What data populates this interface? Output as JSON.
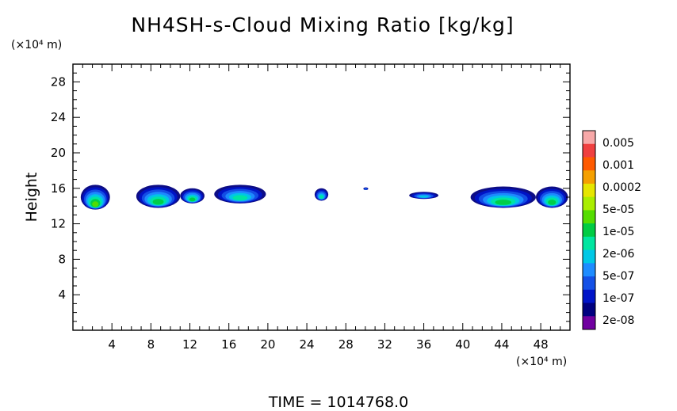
{
  "chart_data": {
    "type": "heatmap",
    "title": "NH4SH-s-Cloud Mixing Ratio [kg/kg]",
    "ylabel": "Height",
    "y_unit": "(×10⁴ m)",
    "x_unit": "(×10⁴ m)",
    "xlim": [
      0,
      51
    ],
    "ylim": [
      0,
      30
    ],
    "x_ticks": [
      "4",
      "8",
      "12",
      "16",
      "20",
      "24",
      "28",
      "32",
      "36",
      "40",
      "44",
      "48"
    ],
    "y_ticks": [
      "4",
      "8",
      "12",
      "16",
      "20",
      "24",
      "28"
    ],
    "grid": false,
    "colorbar": {
      "labels": [
        "0.005",
        "0.001",
        "0.0002",
        "5e-05",
        "1e-05",
        "2e-06",
        "5e-07",
        "1e-07",
        "2e-08"
      ],
      "colors": [
        "#f7a8a8",
        "#f04040",
        "#ff5a00",
        "#f5a000",
        "#e6e600",
        "#aaee00",
        "#55dd00",
        "#00cc44",
        "#00e6a0",
        "#00c8e6",
        "#1e8cff",
        "#1450e6",
        "#0014c8",
        "#000080",
        "#7000a0"
      ]
    },
    "cloud_patches": [
      {
        "x": [
          0.8,
          3.8
        ],
        "y": [
          13.6,
          16.4
        ],
        "max_level": "5e-05"
      },
      {
        "x": [
          6.5,
          11.0
        ],
        "y": [
          13.8,
          16.4
        ],
        "max_level": "1e-05"
      },
      {
        "x": [
          11.0,
          13.5
        ],
        "y": [
          14.3,
          16.0
        ],
        "max_level": "1e-05"
      },
      {
        "x": [
          14.5,
          19.8
        ],
        "y": [
          14.3,
          16.4
        ],
        "max_level": "2e-06"
      },
      {
        "x": [
          24.8,
          26.2
        ],
        "y": [
          14.6,
          16.0
        ],
        "max_level": "2e-06"
      },
      {
        "x": [
          29.8,
          30.3
        ],
        "y": [
          15.8,
          16.1
        ],
        "max_level": "1e-07"
      },
      {
        "x": [
          34.5,
          37.5
        ],
        "y": [
          14.8,
          15.6
        ],
        "max_level": "5e-07"
      },
      {
        "x": [
          40.8,
          47.5
        ],
        "y": [
          13.8,
          16.2
        ],
        "max_level": "1e-05"
      },
      {
        "x": [
          47.5,
          50.8
        ],
        "y": [
          13.8,
          16.2
        ],
        "max_level": "1e-05"
      }
    ]
  },
  "footer": {
    "time_label": "TIME = 1014768.0"
  }
}
